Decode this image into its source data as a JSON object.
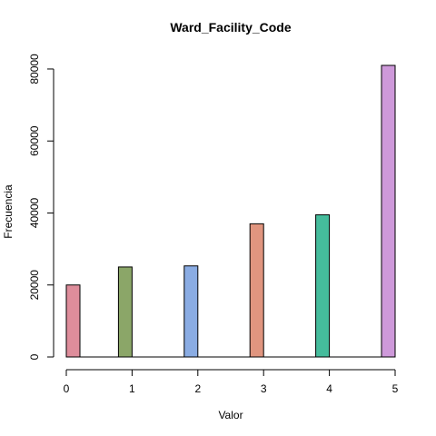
{
  "chart_data": {
    "type": "bar",
    "title": "Ward_Facility_Code",
    "xlabel": "Valor",
    "ylabel": "Frecuencia",
    "x": [
      0,
      1,
      2,
      3,
      4,
      5
    ],
    "values": [
      20000,
      25000,
      25300,
      37000,
      39500,
      81000
    ],
    "colors": [
      "#DE8D9B",
      "#8BA668",
      "#8AACE3",
      "#E0957F",
      "#45BC9C",
      "#CE99DA"
    ],
    "x_ticks": [
      0,
      1,
      2,
      3,
      4,
      5
    ],
    "y_ticks": [
      0,
      20000,
      40000,
      60000,
      80000
    ],
    "xlim": [
      0,
      5
    ],
    "ylim": [
      0,
      81000
    ],
    "grid": false,
    "legend": "none"
  }
}
